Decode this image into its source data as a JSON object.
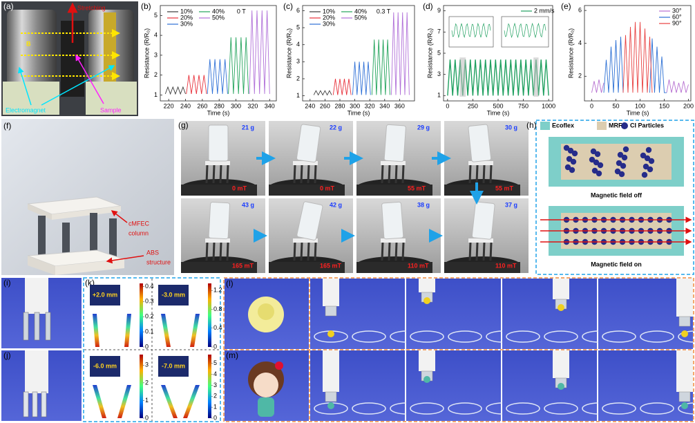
{
  "chart_data": [
    {
      "type": "line",
      "label": "(b)",
      "annotation": "0 T",
      "x_label": "Time (s)",
      "y_label": "Resistance (R/R₀)",
      "xlim": [
        210,
        348
      ],
      "xticks": [
        220,
        240,
        260,
        280,
        300,
        320,
        340
      ],
      "ylim": [
        0.7,
        5.5
      ],
      "yticks": [
        1,
        2,
        3,
        4,
        5
      ],
      "legend": "upper left",
      "series": [
        {
          "name": "10%",
          "color": "#3a3a3a",
          "x": [
            216,
            219,
            222,
            225,
            228,
            231,
            234,
            237,
            240
          ],
          "values": [
            1.05,
            1.4,
            1.05,
            1.4,
            1.05,
            1.4,
            1.05,
            1.4,
            1.05
          ]
        },
        {
          "name": "20%",
          "color": "#e8303a",
          "x": [
            241,
            244,
            247,
            250,
            253,
            256,
            259,
            262,
            265
          ],
          "values": [
            1.05,
            2.0,
            1.05,
            2.0,
            1.05,
            2.0,
            1.05,
            2.0,
            1.05
          ]
        },
        {
          "name": "30%",
          "color": "#2d6fd6",
          "x": [
            266,
            269,
            272,
            275,
            278,
            281,
            284,
            287,
            290
          ],
          "values": [
            1.05,
            2.8,
            1.05,
            2.8,
            1.05,
            2.8,
            1.05,
            2.8,
            1.05
          ]
        },
        {
          "name": "40%",
          "color": "#21a35a",
          "x": [
            291,
            294,
            297,
            300,
            303,
            306,
            309,
            312,
            315
          ],
          "values": [
            1.05,
            3.9,
            1.05,
            3.9,
            1.05,
            3.9,
            1.05,
            3.9,
            1.05
          ]
        },
        {
          "name": "50%",
          "color": "#b06fd8",
          "x": [
            316,
            319,
            322,
            325,
            328,
            331,
            334,
            337,
            340
          ],
          "values": [
            1.05,
            5.25,
            1.05,
            5.25,
            1.05,
            5.25,
            1.05,
            5.25,
            1.05
          ]
        }
      ]
    },
    {
      "type": "line",
      "label": "(c)",
      "annotation": "0.3 T",
      "x_label": "Time (s)",
      "y_label": "Resistance (R/R₀)",
      "xlim": [
        230,
        380
      ],
      "xticks": [
        240,
        260,
        280,
        300,
        320,
        340,
        360
      ],
      "ylim": [
        0.7,
        6.3
      ],
      "yticks": [
        1,
        2,
        3,
        4,
        5,
        6
      ],
      "legend": "upper left",
      "series": [
        {
          "name": "10%",
          "color": "#3a3a3a",
          "x": [
            245,
            248,
            251,
            254,
            257,
            260,
            263,
            266,
            269
          ],
          "values": [
            1.05,
            1.3,
            1.05,
            1.3,
            1.05,
            1.3,
            1.05,
            1.3,
            1.05
          ]
        },
        {
          "name": "20%",
          "color": "#e8303a",
          "x": [
            271,
            274,
            277,
            280,
            283,
            286,
            289,
            292,
            295
          ],
          "values": [
            1.05,
            2.0,
            1.05,
            2.0,
            1.05,
            2.0,
            1.05,
            2.0,
            1.05
          ]
        },
        {
          "name": "30%",
          "color": "#2d6fd6",
          "x": [
            297,
            300,
            303,
            306,
            309,
            312,
            315,
            318,
            321
          ],
          "values": [
            1.05,
            3.0,
            1.05,
            3.0,
            1.05,
            3.0,
            1.05,
            3.0,
            1.05
          ]
        },
        {
          "name": "40%",
          "color": "#21a35a",
          "x": [
            323,
            326,
            329,
            332,
            335,
            338,
            341,
            344,
            347
          ],
          "values": [
            1.05,
            4.3,
            1.05,
            4.3,
            1.05,
            4.3,
            1.05,
            4.3,
            1.05
          ]
        },
        {
          "name": "50%",
          "color": "#b06fd8",
          "x": [
            349,
            352,
            355,
            358,
            361,
            364,
            367,
            370,
            373
          ],
          "values": [
            1.05,
            5.9,
            1.05,
            5.9,
            1.05,
            5.9,
            1.05,
            5.9,
            1.05
          ]
        }
      ]
    },
    {
      "type": "line",
      "label": "(d)",
      "x_label": "Time (s)",
      "y_label": "Resistance (R/R₀)",
      "xlim": [
        -40,
        1040
      ],
      "xticks": [
        0,
        250,
        500,
        750,
        1000
      ],
      "ylim": [
        0.5,
        9.5
      ],
      "yticks": [
        1,
        3,
        5,
        7,
        9
      ],
      "legend": "upper right",
      "series": [
        {
          "name": "2 mm/s",
          "color": "#20a060",
          "x": [
            0,
            25,
            50,
            75,
            100,
            125,
            150,
            175,
            200,
            225,
            250,
            275,
            300,
            325,
            350,
            375,
            400,
            425,
            450,
            475,
            500,
            525,
            550,
            575,
            600,
            625,
            650,
            675,
            700,
            725,
            750,
            775,
            800,
            825,
            850,
            875,
            900,
            925,
            950,
            975,
            1000
          ],
          "values": [
            1.0,
            4.4,
            1.0,
            4.4,
            1.0,
            4.4,
            1.0,
            4.4,
            1.0,
            4.4,
            1.0,
            4.4,
            1.0,
            4.4,
            1.0,
            4.4,
            1.0,
            4.4,
            1.0,
            4.4,
            1.0,
            4.4,
            1.0,
            4.4,
            1.0,
            4.4,
            1.0,
            4.4,
            1.0,
            4.4,
            1.0,
            4.4,
            1.0,
            4.4,
            1.0,
            4.4,
            1.0,
            4.4,
            1.0,
            4.4,
            1.0
          ]
        }
      ]
    },
    {
      "type": "line",
      "label": "(e)",
      "x_label": "Time (s)",
      "y_label": "Resistance (R/R₀)",
      "xlim": [
        -15,
        205
      ],
      "xticks": [
        0,
        50,
        100,
        150,
        200
      ],
      "ylim": [
        0.5,
        6.3
      ],
      "yticks": [
        2,
        4,
        6
      ],
      "legend": "upper right",
      "series": [
        {
          "name": "30°",
          "color": "#b66fd0",
          "x": [
            0,
            5,
            10,
            15,
            20,
            25,
            90,
            155,
            160,
            165,
            170,
            175,
            180,
            185,
            190,
            195,
            200
          ],
          "values": [
            1.0,
            1.7,
            1.0,
            1.8,
            1.0,
            1.6,
            null,
            1.0,
            1.8,
            1.0,
            1.7,
            1.0,
            1.6,
            1.0,
            1.7,
            1.0,
            1.5
          ]
        },
        {
          "name": "60°",
          "color": "#2b6fd4",
          "x": [
            25,
            30,
            35,
            40,
            45,
            50,
            55,
            60,
            65,
            90,
            120,
            125,
            130,
            135,
            140,
            145,
            150,
            155
          ],
          "values": [
            1.0,
            3.0,
            1.0,
            3.8,
            1.0,
            4.2,
            1.0,
            4.4,
            1.0,
            null,
            1.0,
            4.3,
            1.0,
            3.8,
            1.0,
            3.2,
            1.0,
            1.0
          ]
        },
        {
          "name": "90°",
          "color": "#e84040",
          "x": [
            65,
            70,
            75,
            80,
            85,
            90,
            95,
            100,
            105,
            110,
            115,
            120,
            125
          ],
          "values": [
            1.0,
            4.5,
            1.0,
            5.0,
            1.0,
            5.3,
            1.0,
            5.3,
            1.0,
            4.9,
            1.0,
            4.4,
            1.0
          ]
        }
      ]
    }
  ],
  "photos": {
    "a": {
      "label": "(a)",
      "stretching": "Stretching",
      "field": "B",
      "electromagnet": "Electromagnet",
      "sample": "Sample"
    },
    "f": {
      "label": "(f)",
      "column": [
        "cMFEC",
        "column"
      ],
      "structure": [
        "ABS",
        "structure"
      ]
    },
    "g": {
      "label": "(g)",
      "frames": [
        {
          "mass": "21 g",
          "field": "0 mT"
        },
        {
          "mass": "22 g",
          "field": "0 mT"
        },
        {
          "mass": "29 g",
          "field": "55 mT"
        },
        {
          "mass": "30 g",
          "field": "55 mT"
        },
        {
          "mass": "43 g",
          "field": "165 mT"
        },
        {
          "mass": "42 g",
          "field": "165 mT"
        },
        {
          "mass": "38 g",
          "field": "110 mT"
        },
        {
          "mass": "37 g",
          "field": "110 mT"
        }
      ]
    },
    "h": {
      "label": "(h)",
      "legend": [
        "Ecoflex",
        "MRF",
        "CI Particles"
      ],
      "off": "Magnetic field off",
      "on": "Magnetic field on"
    },
    "i": {
      "label": "(i)"
    },
    "j": {
      "label": "(j)"
    },
    "k": {
      "label": "(k)",
      "cases": [
        {
          "displacement": "+2.0 mm",
          "lim": [
            0,
            0.42
          ],
          "colorbar": [
            0,
            0.1,
            0.2,
            0.3,
            0.4
          ]
        },
        {
          "displacement": "-3.0 mm",
          "lim": [
            0,
            1.35
          ],
          "colorbar": [
            0,
            0.4,
            0.8,
            1.2
          ]
        },
        {
          "displacement": "-6.0 mm",
          "lim": [
            0,
            3.6
          ],
          "colorbar": [
            0,
            1,
            2,
            3
          ]
        },
        {
          "displacement": "-7.0 mm",
          "lim": [
            0,
            5.8
          ],
          "colorbar": [
            0,
            1,
            2,
            3,
            4,
            5
          ]
        }
      ]
    },
    "l": {
      "label": "(l)"
    },
    "m": {
      "label": "(m)"
    }
  }
}
